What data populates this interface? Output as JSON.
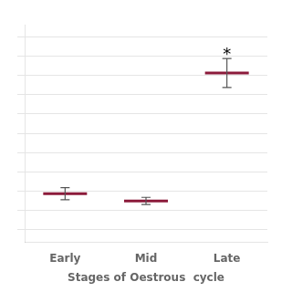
{
  "chart_data": {
    "type": "errorbar",
    "categories": [
      "Early",
      "Mid",
      "Late"
    ],
    "values": [
      0.15,
      0.12,
      0.65
    ],
    "errors": [
      0.025,
      0.015,
      0.06
    ],
    "color": "#8B1A3A",
    "xlabel": "Stages of Oestrous  cycle",
    "ylim": [
      -0.05,
      0.85
    ],
    "yticks": [
      0,
      0.08,
      0.16,
      0.24,
      0.32,
      0.4,
      0.48,
      0.56,
      0.64,
      0.72,
      0.8
    ],
    "grid": true,
    "tick_labels": "x",
    "annotations": [
      {
        "text": "*",
        "category": "Late"
      }
    ]
  }
}
